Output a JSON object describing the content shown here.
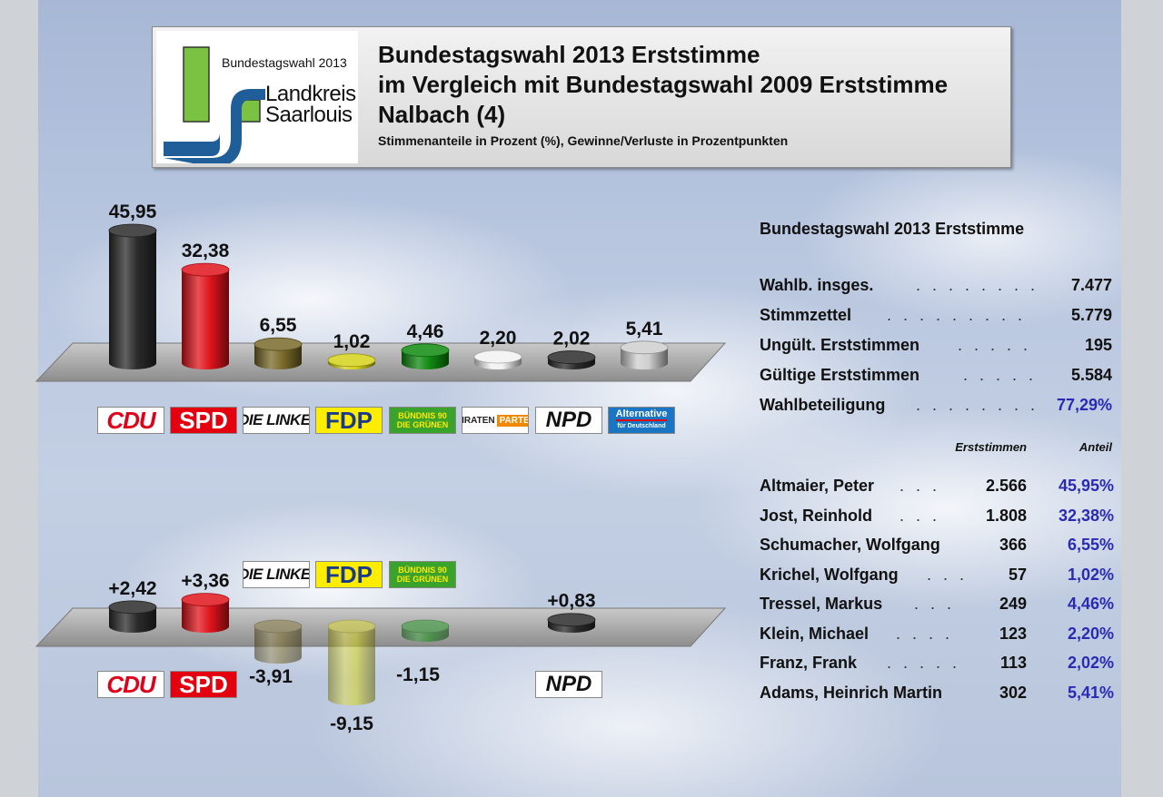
{
  "header": {
    "logo_line1": "Bundestagswahl 2013",
    "logo_line2a": "Landkreis",
    "logo_line2b": "Saarlouis",
    "title1": "Bundestagswahl 2013 Erststimme",
    "title2": "im Vergleich mit Bundestagswahl 2009 Erststimme",
    "title3": "Nalbach (4)",
    "subtitle": "Stimmenanteile in Prozent (%), Gewinne/Verluste in Prozentpunkten"
  },
  "colors": {
    "CDU": "#2b2b2b",
    "SPD": "#e0141c",
    "LINKE": "#7a6a2a",
    "FDP": "#d6d21a",
    "GRUENE": "#0f8a0f",
    "PIRATEN": "#f2f2f2",
    "NPD": "#2b2b2b",
    "AfD": "#cfcfcf"
  },
  "party_logos": {
    "CDU": "CDU",
    "SPD": "SPD",
    "LINKE": "DIE LINKE.",
    "FDP": "FDP",
    "GRUENE_1": "BÜNDNIS 90",
    "GRUENE_2": "DIE GRÜNEN",
    "PIRATEN_1": "PIRATEN",
    "PIRATEN_2": "PARTEI",
    "NPD": "NPD",
    "AFD_1": "Alternative",
    "AFD_2": "für Deutschland"
  },
  "chart_data": [
    {
      "type": "bar",
      "categories": [
        "CDU",
        "SPD",
        "DIE LINKE.",
        "FDP",
        "BÜNDNIS 90/DIE GRÜNEN",
        "PIRATEN",
        "NPD",
        "AfD"
      ],
      "values": [
        45.95,
        32.38,
        6.55,
        1.02,
        4.46,
        2.2,
        2.02,
        5.41
      ],
      "labels": [
        "45,95",
        "32,38",
        "6,55",
        "1,02",
        "4,46",
        "2,20",
        "2,02",
        "5,41"
      ],
      "ylim": [
        0,
        50
      ]
    },
    {
      "type": "bar",
      "categories": [
        "CDU",
        "SPD",
        "DIE LINKE.",
        "FDP",
        "BÜNDNIS 90/DIE GRÜNEN",
        "NPD"
      ],
      "values": [
        2.42,
        3.36,
        -3.91,
        -9.15,
        -1.15,
        0.83
      ],
      "labels": [
        "+2,42",
        "+3,36",
        "-3,91",
        "-9,15",
        "-1,15",
        "+0,83"
      ],
      "ylim": [
        -10,
        5
      ]
    }
  ],
  "table": {
    "title": "Bundestagswahl 2013 Erststimme",
    "summary": [
      {
        "label": "Wahlb. insges.",
        "value": "7.477"
      },
      {
        "label": "Stimmzettel",
        "value": "5.779"
      },
      {
        "label": "Ungült. Erststimmen",
        "value": "195"
      },
      {
        "label": "Gültige Erststimmen",
        "value": "5.584"
      },
      {
        "label": "Wahlbeteiligung",
        "value": "77,29%"
      }
    ],
    "col_votes": "Erststimmen",
    "col_share": "Anteil",
    "candidates": [
      {
        "name": "Altmaier, Peter",
        "votes": "2.566",
        "share": "45,95%"
      },
      {
        "name": "Jost, Reinhold",
        "votes": "1.808",
        "share": "32,38%"
      },
      {
        "name": "Schumacher, Wolfgang",
        "votes": "366",
        "share": "6,55%"
      },
      {
        "name": "Krichel, Wolfgang",
        "votes": "57",
        "share": "1,02%"
      },
      {
        "name": "Tressel, Markus",
        "votes": "249",
        "share": "4,46%"
      },
      {
        "name": "Klein, Michael",
        "votes": "123",
        "share": "2,20%"
      },
      {
        "name": "Franz, Frank",
        "votes": "113",
        "share": "2,02%"
      },
      {
        "name": "Adams, Heinrich Martin",
        "votes": "302",
        "share": "5,41%"
      }
    ]
  }
}
